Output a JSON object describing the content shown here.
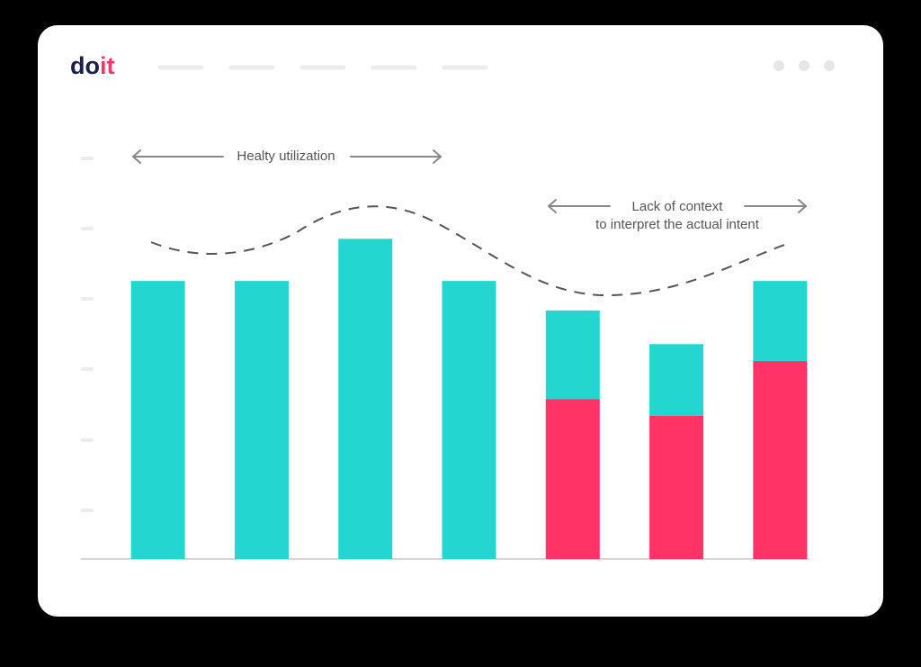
{
  "logo": [
    "do",
    "it"
  ],
  "chart_data": {
    "type": "stacked_bar",
    "annotations": [
      "Healty utilization",
      [
        "Lack of context",
        "to interpret the actual intent"
      ]
    ],
    "categories": [
      null,
      null,
      null,
      null,
      null,
      null,
      null
    ],
    "series": [
      {
        "color": "#ff3366",
        "values": [
          0,
          0,
          0,
          0,
          38,
          34,
          47
        ]
      },
      {
        "color": "#24d6d0",
        "values": [
          66,
          66,
          76,
          66,
          21,
          17,
          19
        ]
      }
    ],
    "ylim": [
      0,
      100
    ]
  }
}
